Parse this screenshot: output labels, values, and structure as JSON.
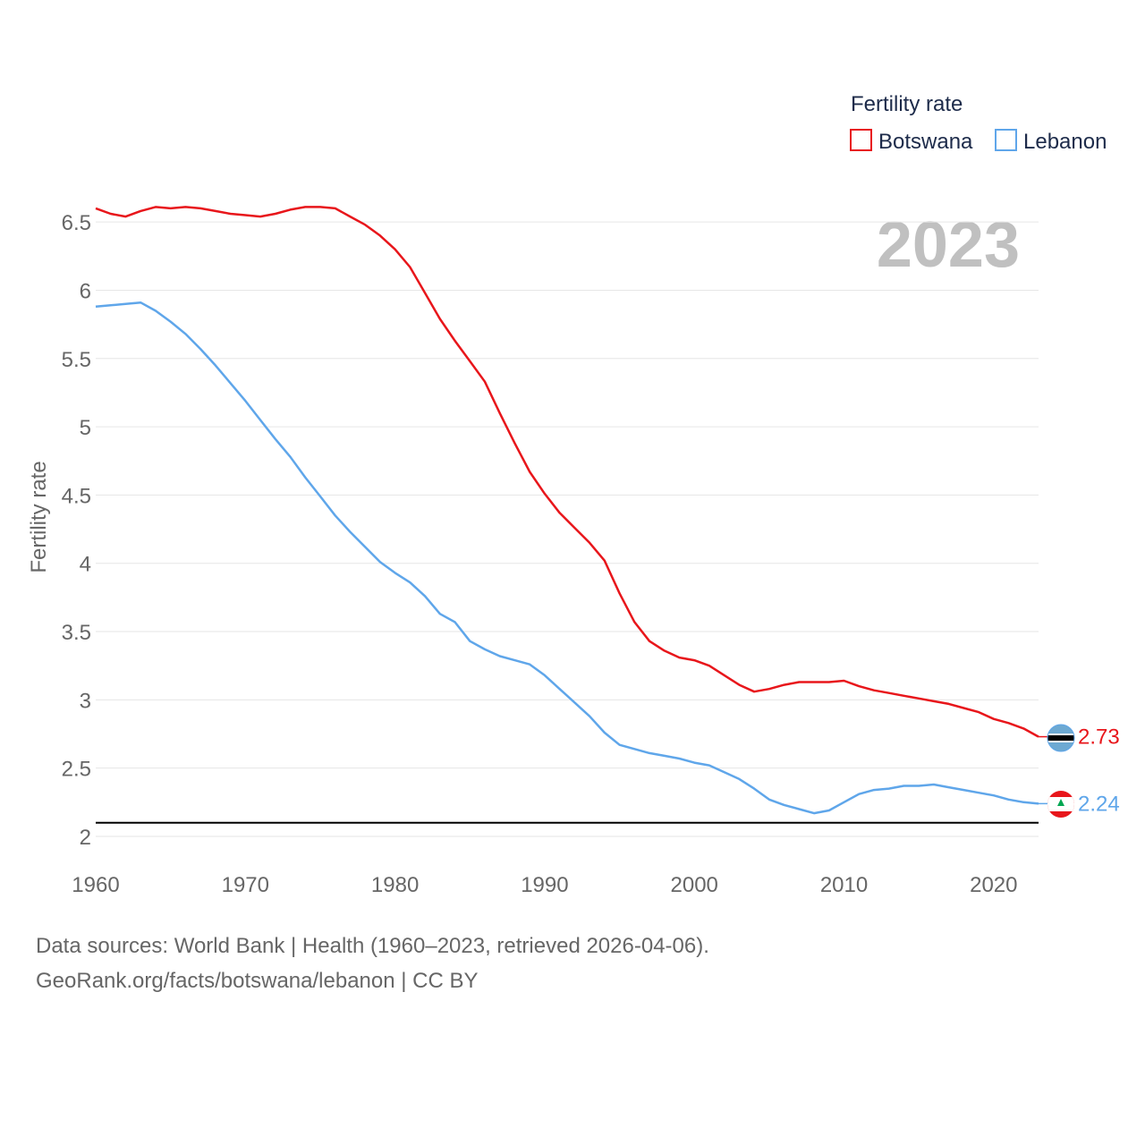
{
  "colors": {
    "botswana": "#e8161b",
    "lebanon": "#5fa6ea",
    "grid": "#e6e6e6",
    "threshold": "#000000",
    "text": "#666666"
  },
  "legend": {
    "title": "Fertility rate",
    "items": [
      "Botswana",
      "Lebanon"
    ]
  },
  "current_year": "2023",
  "footer": {
    "line1": "Data sources: World Bank | Health (1960–2023, retrieved 2026-04-06).",
    "line2": "GeoRank.org/facts/botswana/lebanon | CC BY"
  },
  "chart_data": {
    "type": "line",
    "title": "",
    "xlabel": "",
    "ylabel": "Fertility rate",
    "xlim": [
      1960,
      2023
    ],
    "ylim": [
      2,
      6.75
    ],
    "x_ticks": [
      "1960",
      "1970",
      "1980",
      "1990",
      "2000",
      "2010",
      "2020"
    ],
    "y_ticks": [
      "2",
      "2.5",
      "3",
      "3.5",
      "4",
      "4.5",
      "5",
      "5.5",
      "6",
      "6.5"
    ],
    "reference_line": {
      "y": 2.1
    },
    "x": [
      1960,
      1961,
      1962,
      1963,
      1964,
      1965,
      1966,
      1967,
      1968,
      1969,
      1970,
      1971,
      1972,
      1973,
      1974,
      1975,
      1976,
      1977,
      1978,
      1979,
      1980,
      1981,
      1982,
      1983,
      1984,
      1985,
      1986,
      1987,
      1988,
      1989,
      1990,
      1991,
      1992,
      1993,
      1994,
      1995,
      1996,
      1997,
      1998,
      1999,
      2000,
      2001,
      2002,
      2003,
      2004,
      2005,
      2006,
      2007,
      2008,
      2009,
      2010,
      2011,
      2012,
      2013,
      2014,
      2015,
      2016,
      2017,
      2018,
      2019,
      2020,
      2021,
      2022,
      2023
    ],
    "series": [
      {
        "name": "Botswana",
        "end_label": "2.73",
        "values": [
          6.6,
          6.56,
          6.54,
          6.58,
          6.61,
          6.6,
          6.61,
          6.6,
          6.58,
          6.56,
          6.55,
          6.54,
          6.56,
          6.59,
          6.61,
          6.61,
          6.6,
          6.54,
          6.48,
          6.4,
          6.3,
          6.17,
          5.98,
          5.79,
          5.63,
          5.48,
          5.33,
          5.1,
          4.88,
          4.67,
          4.51,
          4.37,
          4.26,
          4.15,
          4.02,
          3.78,
          3.57,
          3.43,
          3.36,
          3.31,
          3.29,
          3.25,
          3.18,
          3.11,
          3.06,
          3.08,
          3.11,
          3.13,
          3.13,
          3.13,
          3.14,
          3.1,
          3.07,
          3.05,
          3.03,
          3.01,
          2.99,
          2.97,
          2.94,
          2.91,
          2.86,
          2.83,
          2.79,
          2.73
        ]
      },
      {
        "name": "Lebanon",
        "end_label": "2.24",
        "values": [
          5.88,
          5.89,
          5.9,
          5.91,
          5.85,
          5.77,
          5.68,
          5.57,
          5.45,
          5.32,
          5.19,
          5.05,
          4.91,
          4.78,
          4.63,
          4.49,
          4.35,
          4.23,
          4.12,
          4.01,
          3.93,
          3.86,
          3.76,
          3.63,
          3.57,
          3.43,
          3.37,
          3.32,
          3.29,
          3.26,
          3.18,
          3.08,
          2.98,
          2.88,
          2.76,
          2.67,
          2.64,
          2.61,
          2.59,
          2.57,
          2.54,
          2.52,
          2.47,
          2.42,
          2.35,
          2.27,
          2.23,
          2.2,
          2.17,
          2.19,
          2.25,
          2.31,
          2.34,
          2.35,
          2.37,
          2.37,
          2.38,
          2.36,
          2.34,
          2.32,
          2.3,
          2.27,
          2.25,
          2.24
        ]
      }
    ]
  }
}
